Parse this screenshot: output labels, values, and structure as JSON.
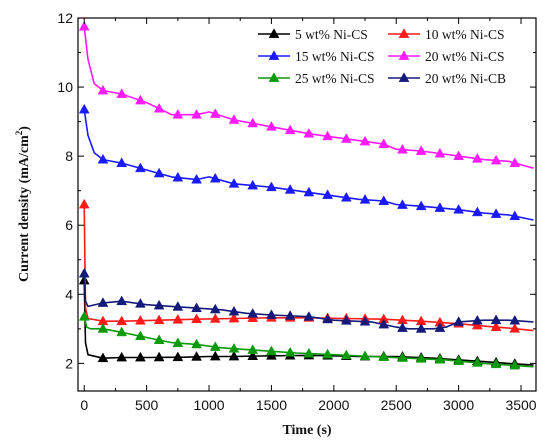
{
  "chart_data": {
    "type": "line",
    "title": "",
    "xlabel": "Time (s)",
    "ylabel_main": "Current density (mA/cm",
    "ylabel_sup": "2",
    "ylabel_close": ")",
    "xlim": [
      -50,
      3620
    ],
    "ylim": [
      1.2,
      12
    ],
    "x_ticks": [
      0,
      500,
      1000,
      1500,
      2000,
      2500,
      3000,
      3500
    ],
    "y_ticks": [
      2,
      4,
      6,
      8,
      10,
      12
    ],
    "x_tick_labels": [
      "0",
      "500",
      "1000",
      "1500",
      "2000",
      "2500",
      "3000",
      "3500"
    ],
    "y_tick_labels": [
      "2",
      "4",
      "6",
      "8",
      "10",
      "12"
    ],
    "grid": false,
    "legend_position": "top-right",
    "legend_columns": 2,
    "series": [
      {
        "name": "5 wt% Ni-CS",
        "color": "#000000",
        "marker": "triangle",
        "points": [
          [
            0,
            4.4
          ],
          [
            10,
            2.6
          ],
          [
            30,
            2.25
          ],
          [
            150,
            2.15
          ],
          [
            300,
            2.17
          ],
          [
            500,
            2.17
          ],
          [
            800,
            2.18
          ],
          [
            1000,
            2.2
          ],
          [
            1200,
            2.2
          ],
          [
            1500,
            2.22
          ],
          [
            1800,
            2.23
          ],
          [
            2000,
            2.22
          ],
          [
            2200,
            2.2
          ],
          [
            2500,
            2.2
          ],
          [
            2800,
            2.15
          ],
          [
            3000,
            2.1
          ],
          [
            3200,
            2.05
          ],
          [
            3400,
            2.0
          ],
          [
            3600,
            1.95
          ]
        ],
        "markers_x": [
          0,
          150,
          300,
          450,
          600,
          750,
          900,
          1050,
          1200,
          1350,
          1500,
          1650,
          1800,
          1950,
          2100,
          2250,
          2400,
          2550,
          2700,
          2850,
          3000,
          3150,
          3300,
          3450
        ]
      },
      {
        "name": "10 wt% Ni-CS",
        "color": "#ff1a1a",
        "marker": "triangle",
        "points": [
          [
            0,
            6.6
          ],
          [
            10,
            3.6
          ],
          [
            30,
            3.3
          ],
          [
            150,
            3.22
          ],
          [
            300,
            3.22
          ],
          [
            600,
            3.25
          ],
          [
            900,
            3.28
          ],
          [
            1200,
            3.3
          ],
          [
            1500,
            3.32
          ],
          [
            1800,
            3.32
          ],
          [
            2100,
            3.3
          ],
          [
            2400,
            3.28
          ],
          [
            2700,
            3.22
          ],
          [
            3000,
            3.15
          ],
          [
            3200,
            3.08
          ],
          [
            3400,
            3.02
          ],
          [
            3600,
            2.95
          ]
        ],
        "markers_x": [
          0,
          150,
          300,
          450,
          600,
          750,
          900,
          1050,
          1200,
          1350,
          1500,
          1650,
          1800,
          1950,
          2100,
          2250,
          2400,
          2550,
          2700,
          2850,
          3000,
          3150,
          3300,
          3450
        ]
      },
      {
        "name": "15 wt% Ni-CS",
        "color": "#1a1aff",
        "marker": "triangle",
        "points": [
          [
            0,
            9.35
          ],
          [
            30,
            8.6
          ],
          [
            80,
            8.1
          ],
          [
            150,
            7.9
          ],
          [
            300,
            7.8
          ],
          [
            500,
            7.6
          ],
          [
            700,
            7.4
          ],
          [
            900,
            7.32
          ],
          [
            1000,
            7.4
          ],
          [
            1200,
            7.2
          ],
          [
            1500,
            7.1
          ],
          [
            1800,
            6.95
          ],
          [
            2000,
            6.85
          ],
          [
            2200,
            6.75
          ],
          [
            2400,
            6.7
          ],
          [
            2500,
            6.6
          ],
          [
            2700,
            6.55
          ],
          [
            3000,
            6.45
          ],
          [
            3200,
            6.35
          ],
          [
            3400,
            6.3
          ],
          [
            3600,
            6.15
          ]
        ],
        "markers_x": [
          0,
          150,
          300,
          450,
          600,
          750,
          900,
          1050,
          1200,
          1350,
          1500,
          1650,
          1800,
          1950,
          2100,
          2250,
          2400,
          2550,
          2700,
          2850,
          3000,
          3150,
          3300,
          3450
        ]
      },
      {
        "name": "20 wt% Ni-CS",
        "color": "#ff1aff",
        "marker": "triangle",
        "points": [
          [
            0,
            11.75
          ],
          [
            30,
            10.8
          ],
          [
            80,
            10.1
          ],
          [
            150,
            9.9
          ],
          [
            300,
            9.8
          ],
          [
            500,
            9.55
          ],
          [
            700,
            9.2
          ],
          [
            900,
            9.2
          ],
          [
            1000,
            9.28
          ],
          [
            1200,
            9.05
          ],
          [
            1500,
            8.85
          ],
          [
            1800,
            8.65
          ],
          [
            2000,
            8.55
          ],
          [
            2200,
            8.45
          ],
          [
            2400,
            8.35
          ],
          [
            2500,
            8.2
          ],
          [
            2700,
            8.15
          ],
          [
            3000,
            8.0
          ],
          [
            3200,
            7.9
          ],
          [
            3400,
            7.85
          ],
          [
            3600,
            7.65
          ]
        ],
        "markers_x": [
          0,
          150,
          300,
          450,
          600,
          750,
          900,
          1050,
          1200,
          1350,
          1500,
          1650,
          1800,
          1950,
          2100,
          2250,
          2400,
          2550,
          2700,
          2850,
          3000,
          3150,
          3300,
          3450
        ]
      },
      {
        "name": "25 wt% Ni-CS",
        "color": "#0a9a0a",
        "marker": "triangle",
        "points": [
          [
            0,
            3.35
          ],
          [
            20,
            3.05
          ],
          [
            50,
            3.0
          ],
          [
            150,
            3.0
          ],
          [
            300,
            2.9
          ],
          [
            500,
            2.75
          ],
          [
            700,
            2.6
          ],
          [
            900,
            2.55
          ],
          [
            1100,
            2.45
          ],
          [
            1300,
            2.4
          ],
          [
            1500,
            2.35
          ],
          [
            1700,
            2.3
          ],
          [
            2000,
            2.25
          ],
          [
            2300,
            2.2
          ],
          [
            2600,
            2.15
          ],
          [
            2900,
            2.1
          ],
          [
            3200,
            2.0
          ],
          [
            3400,
            1.95
          ],
          [
            3600,
            1.9
          ]
        ],
        "markers_x": [
          0,
          150,
          300,
          450,
          600,
          750,
          900,
          1050,
          1200,
          1350,
          1500,
          1650,
          1800,
          1950,
          2100,
          2250,
          2400,
          2550,
          2700,
          2850,
          3000,
          3150,
          3300,
          3450
        ]
      },
      {
        "name": "20 wt% Ni-CB",
        "color": "#141a7a",
        "marker": "triangle",
        "points": [
          [
            0,
            4.6
          ],
          [
            10,
            3.8
          ],
          [
            30,
            3.65
          ],
          [
            150,
            3.75
          ],
          [
            300,
            3.8
          ],
          [
            500,
            3.7
          ],
          [
            700,
            3.65
          ],
          [
            900,
            3.6
          ],
          [
            1100,
            3.55
          ],
          [
            1300,
            3.45
          ],
          [
            1500,
            3.4
          ],
          [
            1800,
            3.35
          ],
          [
            2000,
            3.25
          ],
          [
            2300,
            3.2
          ],
          [
            2500,
            3.05
          ],
          [
            2600,
            3.0
          ],
          [
            2800,
            3.0
          ],
          [
            2900,
            3.05
          ],
          [
            3000,
            3.2
          ],
          [
            3200,
            3.25
          ],
          [
            3400,
            3.25
          ],
          [
            3600,
            3.2
          ]
        ],
        "markers_x": [
          0,
          150,
          300,
          450,
          600,
          750,
          900,
          1050,
          1200,
          1350,
          1500,
          1650,
          1800,
          1950,
          2100,
          2250,
          2400,
          2550,
          2700,
          2850,
          3000,
          3150,
          3300,
          3450
        ]
      }
    ]
  }
}
